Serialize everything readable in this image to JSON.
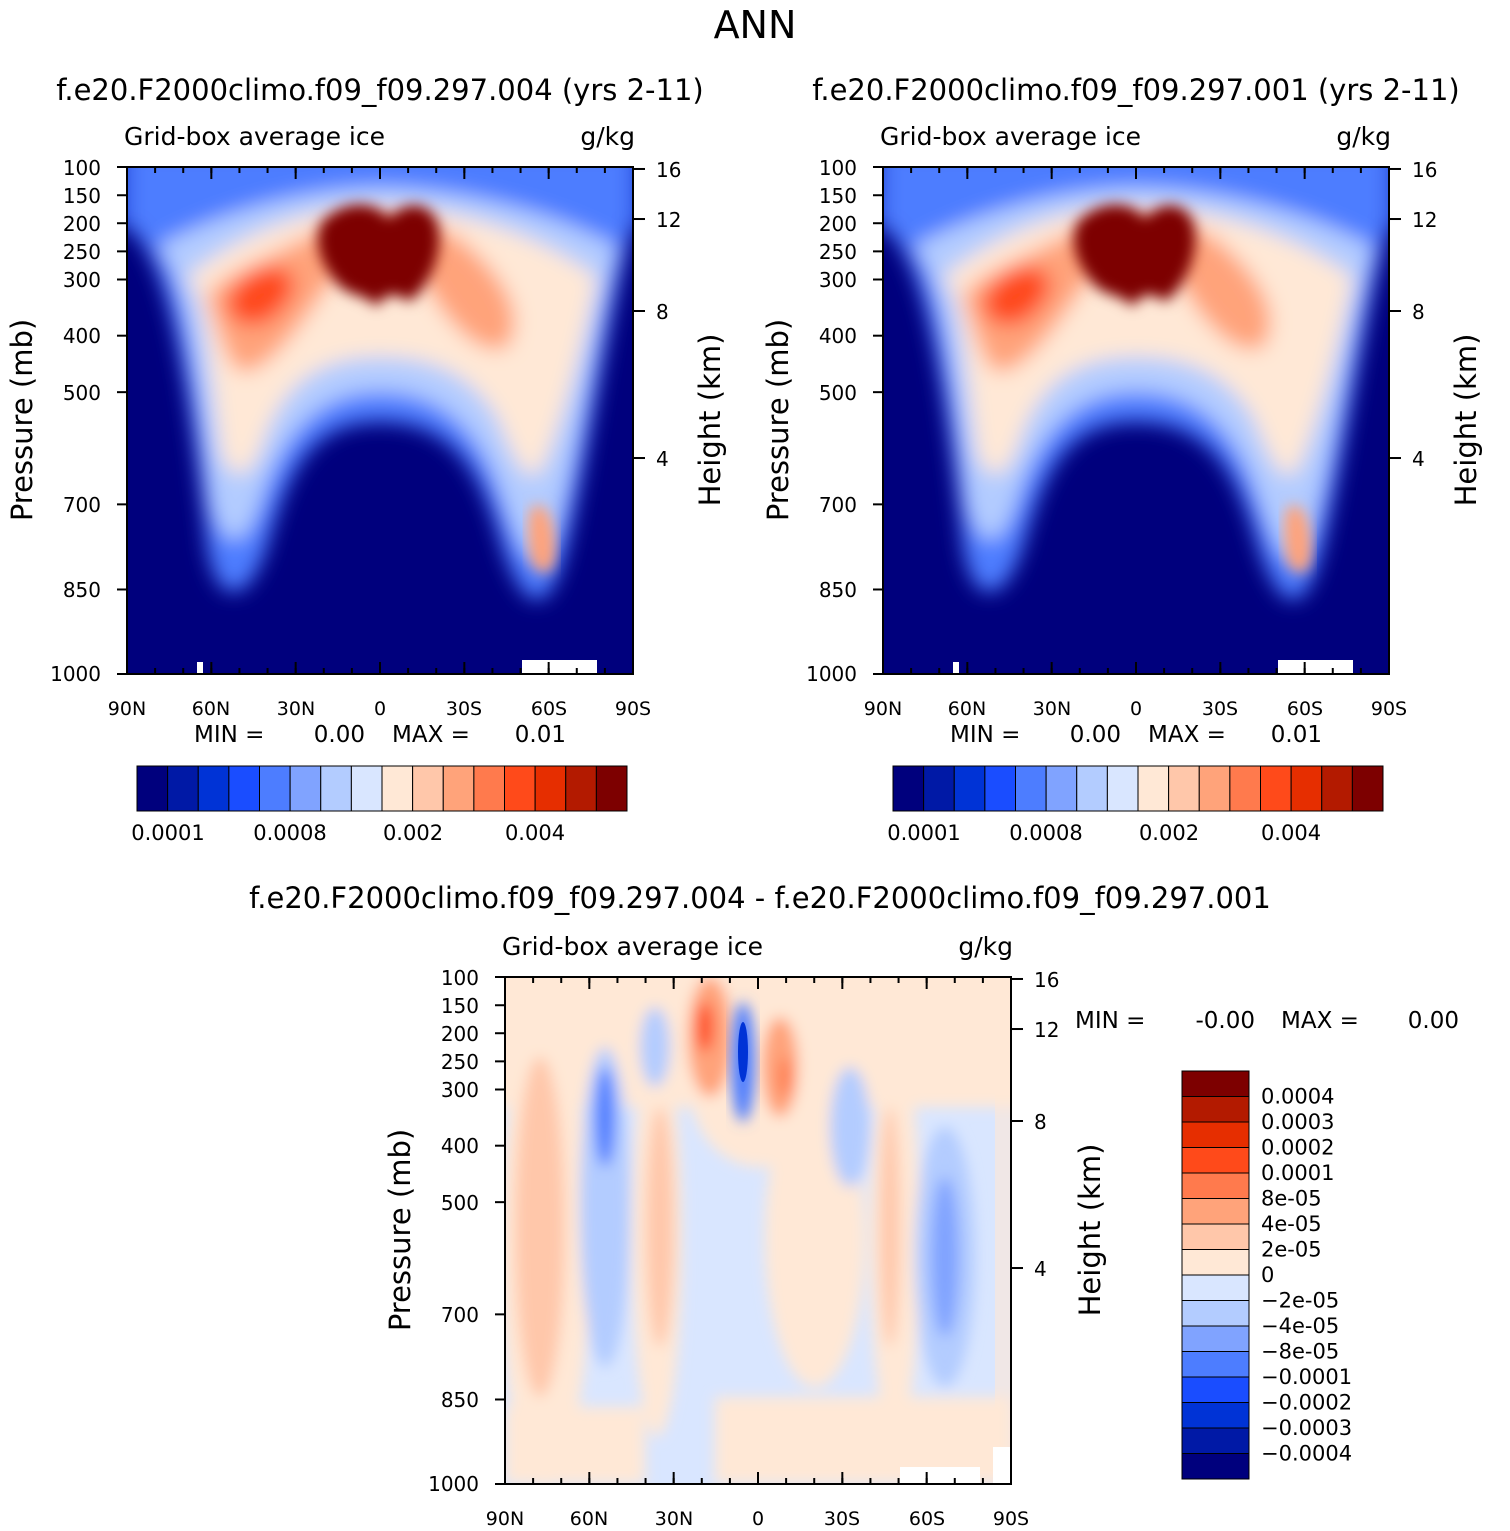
{
  "figure_title": "ANN",
  "chart_data": [
    {
      "type": "heatmap",
      "title": "f.e20.F2000climo.f09_f09.297.004 (yrs 2-11)",
      "subtitle_left": "Grid-box average ice",
      "subtitle_right": "g/kg",
      "ylabel": "Pressure (mb)",
      "ylabel_right": "Height (km)",
      "x_ticks": [
        "90N",
        "60N",
        "30N",
        "0",
        "30S",
        "60S",
        "90S"
      ],
      "y_ticks": [
        100,
        150,
        200,
        250,
        300,
        400,
        500,
        700,
        850,
        1000
      ],
      "y_ticks_right": [
        16,
        12,
        8,
        4
      ],
      "ylim": [
        1000,
        100
      ],
      "xlim": [
        "90N",
        "90S"
      ],
      "stats": {
        "min_label": "MIN =",
        "min_value": "0.00",
        "max_label": "MAX =",
        "max_value": "0.01"
      },
      "colorbar": {
        "orientation": "horizontal",
        "colors": [
          "#00007d",
          "#0019a6",
          "#0033d6",
          "#1a4dff",
          "#4d7dff",
          "#80a3ff",
          "#b3ccff",
          "#d9e6ff",
          "#ffe8d6",
          "#ffc7aa",
          "#ffa37a",
          "#ff7a4d",
          "#ff4a1a",
          "#e62e00",
          "#b31a00",
          "#7d0000"
        ],
        "labels": [
          "0.0001",
          "0.0008",
          "0.002",
          "0.004"
        ]
      }
    },
    {
      "type": "heatmap",
      "title": "f.e20.F2000climo.f09_f09.297.001 (yrs 2-11)",
      "subtitle_left": "Grid-box average ice",
      "subtitle_right": "g/kg",
      "ylabel": "Pressure (mb)",
      "ylabel_right": "Height (km)",
      "x_ticks": [
        "90N",
        "60N",
        "30N",
        "0",
        "30S",
        "60S",
        "90S"
      ],
      "y_ticks": [
        100,
        150,
        200,
        250,
        300,
        400,
        500,
        700,
        850,
        1000
      ],
      "y_ticks_right": [
        16,
        12,
        8,
        4
      ],
      "ylim": [
        1000,
        100
      ],
      "xlim": [
        "90N",
        "90S"
      ],
      "stats": {
        "min_label": "MIN =",
        "min_value": "0.00",
        "max_label": "MAX =",
        "max_value": "0.01"
      },
      "colorbar": {
        "orientation": "horizontal",
        "colors": [
          "#00007d",
          "#0019a6",
          "#0033d6",
          "#1a4dff",
          "#4d7dff",
          "#80a3ff",
          "#b3ccff",
          "#d9e6ff",
          "#ffe8d6",
          "#ffc7aa",
          "#ffa37a",
          "#ff7a4d",
          "#ff4a1a",
          "#e62e00",
          "#b31a00",
          "#7d0000"
        ],
        "labels": [
          "0.0001",
          "0.0008",
          "0.002",
          "0.004"
        ]
      }
    },
    {
      "type": "heatmap",
      "title": "f.e20.F2000climo.f09_f09.297.004 - f.e20.F2000climo.f09_f09.297.001",
      "subtitle_left": "Grid-box average ice",
      "subtitle_right": "g/kg",
      "ylabel": "Pressure (mb)",
      "ylabel_right": "Height (km)",
      "x_ticks": [
        "90N",
        "60N",
        "30N",
        "0",
        "30S",
        "60S",
        "90S"
      ],
      "y_ticks": [
        100,
        150,
        200,
        250,
        300,
        400,
        500,
        700,
        850,
        1000
      ],
      "y_ticks_right": [
        16,
        12,
        8,
        4
      ],
      "ylim": [
        1000,
        100
      ],
      "xlim": [
        "90N",
        "90S"
      ],
      "stats": {
        "min_label": "MIN =",
        "min_value": "-0.00",
        "max_label": "MAX =",
        "max_value": "0.00"
      },
      "colorbar": {
        "orientation": "vertical",
        "colors": [
          "#7d0000",
          "#b31a00",
          "#e62e00",
          "#ff4a1a",
          "#ff7a4d",
          "#ffa37a",
          "#ffc7aa",
          "#ffe8d6",
          "#d9e6ff",
          "#b3ccff",
          "#80a3ff",
          "#4d7dff",
          "#1a4dff",
          "#0033d6",
          "#0019a6",
          "#00007d"
        ],
        "labels": [
          "0.0004",
          "0.0003",
          "0.0002",
          "0.0001",
          "8e-05",
          "4e-05",
          "2e-05",
          "0",
          "-2e-05",
          "-4e-05",
          "-8e-05",
          "-0.0001",
          "-0.0002",
          "-0.0003",
          "-0.0004"
        ]
      }
    }
  ]
}
